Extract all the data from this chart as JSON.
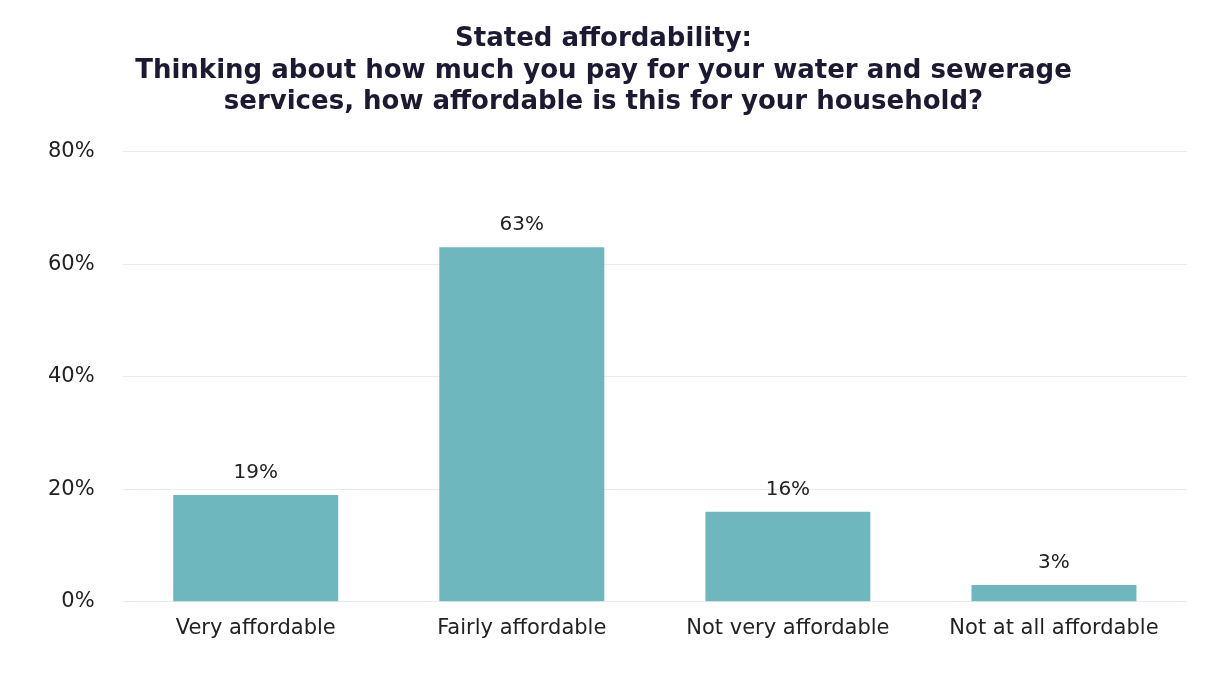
{
  "chart_data": {
    "type": "bar",
    "title": "Stated affordability:\nThinking about how much you pay for your water and sewerage\nservices, how affordable is this for your household?",
    "categories": [
      "Very affordable",
      "Fairly affordable",
      "Not very affordable",
      "Not at all affordable"
    ],
    "values": [
      19,
      63,
      16,
      3
    ],
    "value_labels": [
      "19%",
      "63%",
      "16%",
      "3%"
    ],
    "color": "#6fb7bf",
    "ylim": [
      0,
      80
    ],
    "yticks": [
      {
        "value": 0,
        "label": "0%"
      },
      {
        "value": 20,
        "label": "20%"
      },
      {
        "value": 40,
        "label": "40%"
      },
      {
        "value": 60,
        "label": "60%"
      },
      {
        "value": 80,
        "label": "80%"
      }
    ],
    "grid": "y",
    "legend": false
  }
}
